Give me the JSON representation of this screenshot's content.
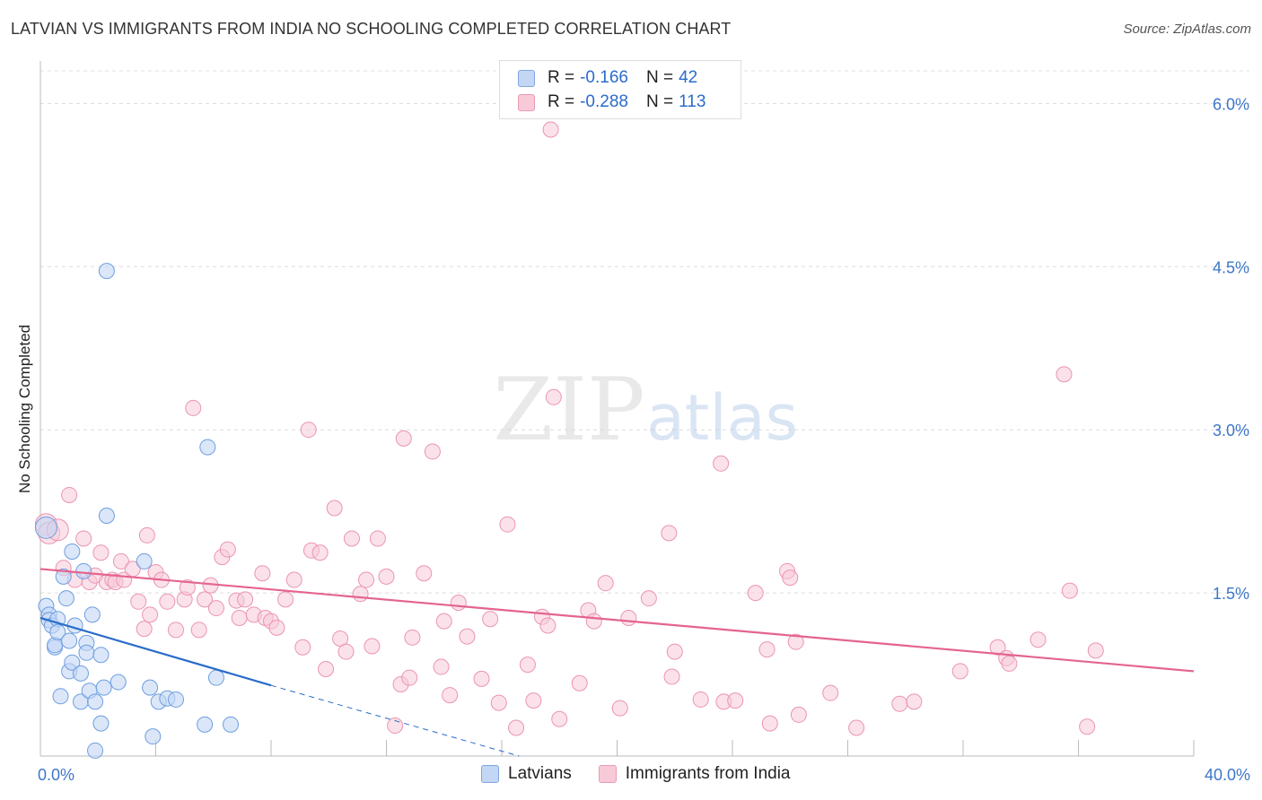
{
  "title": "LATVIAN VS IMMIGRANTS FROM INDIA NO SCHOOLING COMPLETED CORRELATION CHART",
  "source": "Source: ZipAtlas.com",
  "watermark": {
    "zip": "ZIP",
    "atlas": "atlas"
  },
  "legend": {
    "r_label": "R =",
    "n_label": "N =",
    "latvians": {
      "r": "-0.166",
      "n": "42"
    },
    "india": {
      "r": "-0.288",
      "n": "113"
    }
  },
  "colors": {
    "latvians_fill": "#c3d7f5",
    "latvians_stroke": "#6d9ee0",
    "latvians_line": "#2a6cc9",
    "india_fill": "#f8cad8",
    "india_stroke": "#eb94b1",
    "india_line": "#e4648e",
    "tick_label": "#3d76c8"
  },
  "chart_data": {
    "type": "scatter",
    "title": "LATVIAN VS IMMIGRANTS FROM INDIA NO SCHOOLING COMPLETED CORRELATION CHART",
    "xlabel": "",
    "ylabel": "No Schooling Completed",
    "xlim": [
      0,
      40
    ],
    "ylim": [
      0,
      6.3
    ],
    "x_tick_labels": [
      "0.0%",
      "40.0%"
    ],
    "y_ticks": [
      1.5,
      3.0,
      4.5,
      6.0
    ],
    "y_tick_labels": [
      "1.5%",
      "3.0%",
      "4.5%",
      "6.0%"
    ],
    "x_unit": "%",
    "y_unit": "%",
    "series": [
      {
        "name": "Latvians",
        "color": "#6d9ee0",
        "points": [
          [
            0.2,
            2.1
          ],
          [
            0.2,
            1.38
          ],
          [
            0.3,
            1.3
          ],
          [
            0.3,
            1.25
          ],
          [
            0.4,
            1.2
          ],
          [
            0.5,
            1.0
          ],
          [
            0.5,
            1.02
          ],
          [
            0.6,
            1.26
          ],
          [
            0.6,
            1.14
          ],
          [
            0.7,
            0.55
          ],
          [
            0.8,
            1.65
          ],
          [
            0.9,
            1.45
          ],
          [
            1.0,
            1.06
          ],
          [
            1.0,
            0.78
          ],
          [
            1.1,
            0.86
          ],
          [
            1.1,
            1.88
          ],
          [
            1.2,
            1.2
          ],
          [
            1.4,
            0.5
          ],
          [
            1.4,
            0.76
          ],
          [
            1.5,
            1.7
          ],
          [
            1.6,
            1.04
          ],
          [
            1.6,
            0.95
          ],
          [
            1.7,
            0.6
          ],
          [
            1.8,
            1.3
          ],
          [
            1.9,
            0.5
          ],
          [
            1.9,
            0.05
          ],
          [
            2.1,
            0.3
          ],
          [
            2.1,
            0.93
          ],
          [
            2.2,
            0.63
          ],
          [
            2.3,
            4.46
          ],
          [
            2.3,
            2.21
          ],
          [
            2.7,
            0.68
          ],
          [
            3.6,
            1.79
          ],
          [
            3.8,
            0.63
          ],
          [
            3.9,
            0.18
          ],
          [
            4.1,
            0.5
          ],
          [
            4.4,
            0.53
          ],
          [
            4.7,
            0.52
          ],
          [
            5.7,
            0.29
          ],
          [
            5.8,
            2.84
          ],
          [
            6.1,
            0.72
          ],
          [
            6.6,
            0.29
          ]
        ],
        "regression": {
          "x": [
            0,
            8
          ],
          "y": [
            1.27,
            0.65
          ],
          "dashed_extension": {
            "x": [
              8,
              16.6
            ],
            "y": [
              0.65,
              0.0
            ]
          }
        }
      },
      {
        "name": "Immigrants from India",
        "color": "#eb94b1",
        "points": [
          [
            0.2,
            2.13
          ],
          [
            0.3,
            2.05
          ],
          [
            0.6,
            2.08
          ],
          [
            0.8,
            1.73
          ],
          [
            1.0,
            2.4
          ],
          [
            1.2,
            1.62
          ],
          [
            1.5,
            2.0
          ],
          [
            1.7,
            1.6
          ],
          [
            1.9,
            1.66
          ],
          [
            2.1,
            1.87
          ],
          [
            2.3,
            1.6
          ],
          [
            2.5,
            1.62
          ],
          [
            2.6,
            1.6
          ],
          [
            2.8,
            1.79
          ],
          [
            2.9,
            1.62
          ],
          [
            3.2,
            1.72
          ],
          [
            3.4,
            1.42
          ],
          [
            3.6,
            1.17
          ],
          [
            3.7,
            2.03
          ],
          [
            3.8,
            1.3
          ],
          [
            4.0,
            1.69
          ],
          [
            4.2,
            1.62
          ],
          [
            4.4,
            1.42
          ],
          [
            4.7,
            1.16
          ],
          [
            5.0,
            1.44
          ],
          [
            5.1,
            1.55
          ],
          [
            5.3,
            3.2
          ],
          [
            5.5,
            1.16
          ],
          [
            5.7,
            1.44
          ],
          [
            5.9,
            1.57
          ],
          [
            6.1,
            1.36
          ],
          [
            6.3,
            1.83
          ],
          [
            6.5,
            1.9
          ],
          [
            6.8,
            1.43
          ],
          [
            6.9,
            1.27
          ],
          [
            7.1,
            1.44
          ],
          [
            7.4,
            1.3
          ],
          [
            7.7,
            1.68
          ],
          [
            7.8,
            1.27
          ],
          [
            8.0,
            1.24
          ],
          [
            8.2,
            1.18
          ],
          [
            8.5,
            1.44
          ],
          [
            8.8,
            1.62
          ],
          [
            9.1,
            1.0
          ],
          [
            9.3,
            3.0
          ],
          [
            9.4,
            1.89
          ],
          [
            9.7,
            1.87
          ],
          [
            9.9,
            0.8
          ],
          [
            10.2,
            2.28
          ],
          [
            10.4,
            1.08
          ],
          [
            10.6,
            0.96
          ],
          [
            10.8,
            2.0
          ],
          [
            11.1,
            1.49
          ],
          [
            11.3,
            1.62
          ],
          [
            11.5,
            1.01
          ],
          [
            11.7,
            2.0
          ],
          [
            12.0,
            1.65
          ],
          [
            12.3,
            0.28
          ],
          [
            12.5,
            0.66
          ],
          [
            12.6,
            2.92
          ],
          [
            12.8,
            0.72
          ],
          [
            12.9,
            1.09
          ],
          [
            13.3,
            1.68
          ],
          [
            13.6,
            2.8
          ],
          [
            13.9,
            0.82
          ],
          [
            14.0,
            1.24
          ],
          [
            14.2,
            0.56
          ],
          [
            14.5,
            1.41
          ],
          [
            14.8,
            1.1
          ],
          [
            15.3,
            0.71
          ],
          [
            15.6,
            1.26
          ],
          [
            15.9,
            0.49
          ],
          [
            16.2,
            2.13
          ],
          [
            16.5,
            0.26
          ],
          [
            16.9,
            0.84
          ],
          [
            17.1,
            0.51
          ],
          [
            17.4,
            1.28
          ],
          [
            17.6,
            1.2
          ],
          [
            17.7,
            5.76
          ],
          [
            17.8,
            3.3
          ],
          [
            18.0,
            0.34
          ],
          [
            18.7,
            0.67
          ],
          [
            19.0,
            1.34
          ],
          [
            19.2,
            1.24
          ],
          [
            19.6,
            1.59
          ],
          [
            20.1,
            0.44
          ],
          [
            20.4,
            1.27
          ],
          [
            21.1,
            1.45
          ],
          [
            21.8,
            2.05
          ],
          [
            21.9,
            0.73
          ],
          [
            22.0,
            0.96
          ],
          [
            22.9,
            0.52
          ],
          [
            23.6,
            2.69
          ],
          [
            23.7,
            0.5
          ],
          [
            24.1,
            0.51
          ],
          [
            24.8,
            1.5
          ],
          [
            25.2,
            0.98
          ],
          [
            25.3,
            0.3
          ],
          [
            25.9,
            1.7
          ],
          [
            26.0,
            1.64
          ],
          [
            26.2,
            1.05
          ],
          [
            26.3,
            0.38
          ],
          [
            27.4,
            0.58
          ],
          [
            28.3,
            0.26
          ],
          [
            29.8,
            0.48
          ],
          [
            30.3,
            0.5
          ],
          [
            31.9,
            0.78
          ],
          [
            33.2,
            1.0
          ],
          [
            33.5,
            0.9
          ],
          [
            33.6,
            0.85
          ],
          [
            34.6,
            1.07
          ],
          [
            35.5,
            3.51
          ],
          [
            35.7,
            1.52
          ],
          [
            36.3,
            0.27
          ],
          [
            36.6,
            0.97
          ]
        ],
        "regression": {
          "x": [
            0,
            40
          ],
          "y": [
            1.72,
            0.78
          ]
        }
      }
    ]
  },
  "bottom_legend": {
    "latvians": "Latvians",
    "india": "Immigrants from India"
  }
}
